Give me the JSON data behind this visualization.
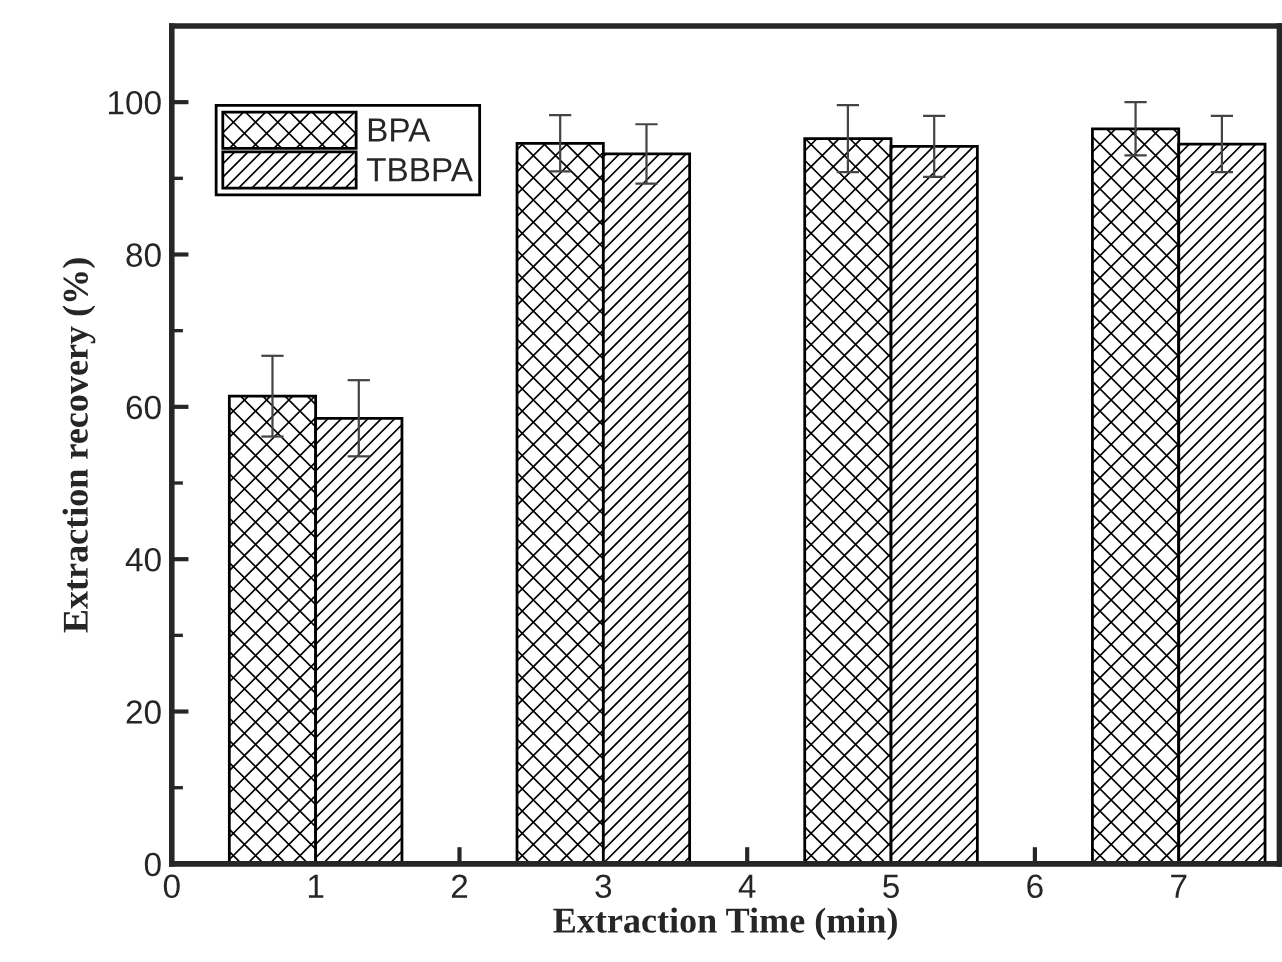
{
  "chart_data": {
    "type": "bar",
    "xlabel": "Extraction Time (min)",
    "ylabel": "Extraction recovery (%)",
    "xlim": [
      0,
      7.7
    ],
    "xticks": [
      0,
      1,
      2,
      3,
      4,
      5,
      6,
      7
    ],
    "ylim": [
      0,
      110
    ],
    "yticks": [
      0,
      20,
      40,
      60,
      80,
      100
    ],
    "legend": "top left",
    "grid": false,
    "series": [
      {
        "name": "BPA",
        "color": "#000000",
        "x": [
          0.7,
          2.7,
          4.7,
          6.7
        ],
        "values": [
          61.4,
          94.6,
          95.2,
          96.5
        ],
        "errors": [
          5.3,
          3.7,
          4.4,
          3.5
        ]
      },
      {
        "name": "TBBPA",
        "color": "#000000",
        "x": [
          1.3,
          3.3,
          5.3,
          7.3
        ],
        "values": [
          58.5,
          93.2,
          94.2,
          94.5
        ],
        "errors": [
          5.0,
          3.9,
          4.0,
          3.7
        ]
      }
    ]
  }
}
